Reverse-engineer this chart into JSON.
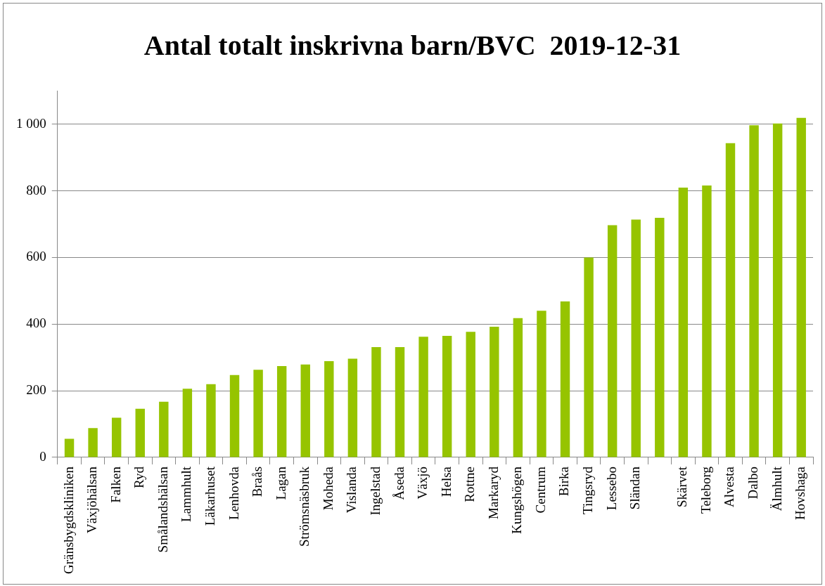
{
  "chart_data": {
    "type": "bar",
    "title": "Antal totalt inskrivna barn/BVC  2019-12-31",
    "categories": [
      "Gränsbygdskliniken",
      "Växjöhälsan",
      "Falken",
      "Ryd",
      "Smålandshälsan",
      "Lammhult",
      "Läkarhuset",
      "Lenhovda",
      "Braås",
      "Lagan",
      "Strömsnäsbruk",
      "Moheda",
      "Vislanda",
      "Ingelstad",
      "Åseda",
      "Växjö",
      "Helsa",
      "Rottne",
      "Markaryd",
      "Kungshögen",
      "Centrum",
      "Birka",
      "Tingsryd",
      "Lessebo",
      "Sländan",
      null,
      "Skärvet",
      "Teleborg",
      "Alvesta",
      "Dalbo",
      "Älmhult",
      "Hovshaga"
    ],
    "values": [
      56,
      88,
      119,
      146,
      167,
      206,
      220,
      247,
      263,
      274,
      279,
      289,
      296,
      331,
      331,
      362,
      365,
      377,
      392,
      418,
      440,
      468,
      600,
      697,
      714,
      719,
      810,
      816,
      943,
      997,
      1002,
      1019
    ],
    "color": "#96c400",
    "ylim": [
      0,
      1100
    ],
    "yticks": [
      {
        "value": 0,
        "label": "0"
      },
      {
        "value": 200,
        "label": "200"
      },
      {
        "value": 400,
        "label": "400"
      },
      {
        "value": 600,
        "label": "600"
      },
      {
        "value": 800,
        "label": "800"
      },
      {
        "value": 1000,
        "label": "1 000"
      }
    ],
    "grid": "y",
    "legend": false
  }
}
